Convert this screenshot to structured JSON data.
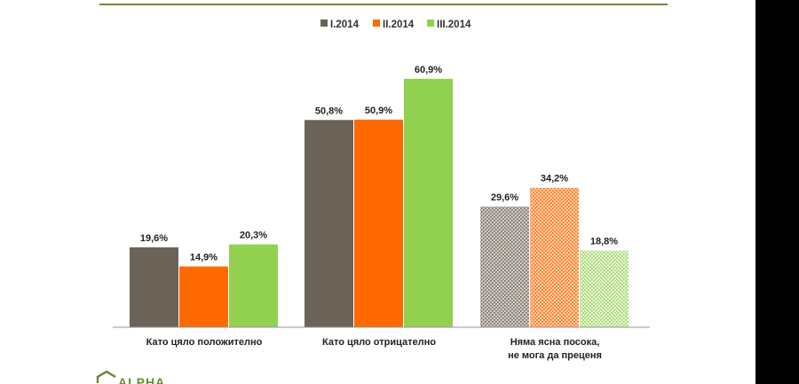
{
  "chart_data": {
    "type": "bar",
    "categories": [
      [
        "Като цяло положително"
      ],
      [
        "Като цяло отрицателно"
      ],
      [
        "Няма ясна посока,",
        "не мога да преценя"
      ]
    ],
    "series": [
      {
        "name": "I.2014",
        "color": "#6b6358",
        "values": [
          19.6,
          50.8,
          29.6
        ],
        "labels": [
          "19,6%",
          "50,8%",
          "29,6%"
        ]
      },
      {
        "name": "II.2014",
        "color": "#ff6a00",
        "values": [
          14.9,
          50.9,
          34.2
        ],
        "labels": [
          "14,9%",
          "50,9%",
          "34,2%"
        ]
      },
      {
        "name": "III.2014",
        "color": "#92d050",
        "values": [
          20.3,
          60.9,
          18.8
        ],
        "labels": [
          "20,3%",
          "60,9%",
          "18,8%"
        ]
      }
    ],
    "hatched_category_index": 2,
    "ylim": [
      0,
      70
    ],
    "legend": "top-center",
    "grid": false
  },
  "logo": {
    "text": "ALPHA"
  }
}
